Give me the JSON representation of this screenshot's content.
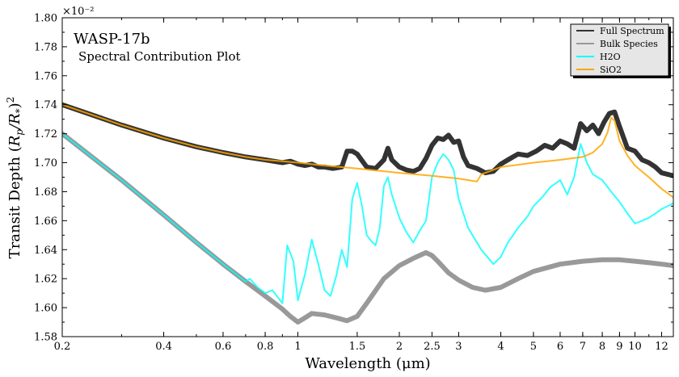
{
  "chart_data": {
    "type": "line",
    "title": "WASP-17b",
    "subtitle": "Spectral Contribution Plot",
    "xlabel": "Wavelength (μm)",
    "ylabel": "Transit Depth (R_p/R_*)^2",
    "y_multiplier": "×10⁻²",
    "x_scale": "log",
    "xlim": [
      0.2,
      13.0
    ],
    "ylim": [
      1.58,
      1.8
    ],
    "x_ticks": [
      "0.2",
      "0.4",
      "0.6",
      "0.8",
      "1",
      "1.5",
      "2",
      "2.5",
      "3",
      "4",
      "5",
      "6",
      "7",
      "8",
      "9",
      "10",
      "12"
    ],
    "y_ticks": [
      "1.58",
      "1.60",
      "1.62",
      "1.64",
      "1.66",
      "1.68",
      "1.70",
      "1.72",
      "1.74",
      "1.76",
      "1.78",
      "1.80"
    ],
    "legend_position": "top-right",
    "series": [
      {
        "name": "Full Spectrum",
        "color": "#333333",
        "x": [
          0.2,
          0.3,
          0.4,
          0.5,
          0.6,
          0.7,
          0.8,
          0.9,
          0.95,
          1.0,
          1.05,
          1.1,
          1.15,
          1.2,
          1.27,
          1.35,
          1.4,
          1.45,
          1.5,
          1.6,
          1.7,
          1.8,
          1.85,
          1.9,
          2.0,
          2.1,
          2.2,
          2.3,
          2.4,
          2.5,
          2.6,
          2.7,
          2.8,
          2.9,
          3.0,
          3.1,
          3.2,
          3.4,
          3.6,
          3.8,
          4.0,
          4.2,
          4.5,
          4.8,
          5.1,
          5.4,
          5.7,
          6.0,
          6.3,
          6.6,
          6.9,
          7.2,
          7.5,
          7.8,
          8.1,
          8.4,
          8.7,
          9.0,
          9.5,
          10.0,
          10.5,
          11.0,
          11.5,
          12.0,
          12.5,
          13.0
        ],
        "y": [
          1.74,
          1.726,
          1.717,
          1.711,
          1.707,
          1.704,
          1.702,
          1.7,
          1.701,
          1.699,
          1.698,
          1.699,
          1.697,
          1.697,
          1.696,
          1.697,
          1.708,
          1.708,
          1.706,
          1.697,
          1.696,
          1.702,
          1.71,
          1.702,
          1.697,
          1.695,
          1.694,
          1.696,
          1.703,
          1.712,
          1.717,
          1.716,
          1.719,
          1.714,
          1.715,
          1.704,
          1.698,
          1.696,
          1.693,
          1.694,
          1.699,
          1.702,
          1.706,
          1.705,
          1.708,
          1.712,
          1.71,
          1.715,
          1.713,
          1.71,
          1.727,
          1.722,
          1.726,
          1.72,
          1.728,
          1.734,
          1.735,
          1.725,
          1.71,
          1.708,
          1.702,
          1.7,
          1.697,
          1.693,
          1.692,
          1.691
        ]
      },
      {
        "name": "Bulk Species",
        "color": "#999999",
        "x": [
          0.2,
          0.3,
          0.4,
          0.5,
          0.6,
          0.7,
          0.8,
          0.9,
          0.95,
          1.0,
          1.05,
          1.1,
          1.2,
          1.3,
          1.4,
          1.5,
          1.6,
          1.8,
          2.0,
          2.2,
          2.4,
          2.5,
          2.6,
          2.8,
          3.0,
          3.3,
          3.6,
          4.0,
          4.5,
          5.0,
          6.0,
          7.0,
          8.0,
          9.0,
          10.0,
          11.0,
          12.0,
          13.0
        ],
        "y": [
          1.72,
          1.688,
          1.664,
          1.645,
          1.63,
          1.618,
          1.608,
          1.599,
          1.594,
          1.59,
          1.593,
          1.596,
          1.595,
          1.593,
          1.591,
          1.594,
          1.603,
          1.62,
          1.629,
          1.634,
          1.638,
          1.636,
          1.632,
          1.624,
          1.619,
          1.614,
          1.612,
          1.614,
          1.62,
          1.625,
          1.63,
          1.632,
          1.633,
          1.633,
          1.632,
          1.631,
          1.63,
          1.629
        ]
      },
      {
        "name": "H2O",
        "color": "#00FFFF",
        "x": [
          0.2,
          0.3,
          0.4,
          0.5,
          0.6,
          0.7,
          0.72,
          0.76,
          0.8,
          0.84,
          0.88,
          0.9,
          0.93,
          0.97,
          1.0,
          1.05,
          1.1,
          1.15,
          1.2,
          1.25,
          1.3,
          1.35,
          1.4,
          1.45,
          1.5,
          1.55,
          1.6,
          1.65,
          1.7,
          1.75,
          1.8,
          1.85,
          1.9,
          2.0,
          2.1,
          2.2,
          2.3,
          2.4,
          2.5,
          2.6,
          2.7,
          2.8,
          2.9,
          3.0,
          3.2,
          3.5,
          3.8,
          4.0,
          4.2,
          4.5,
          4.8,
          5.0,
          5.3,
          5.6,
          6.0,
          6.3,
          6.6,
          6.9,
          7.2,
          7.5,
          8.0,
          8.5,
          9.0,
          9.5,
          10.0,
          10.5,
          11.0,
          11.5,
          12.0,
          12.5,
          13.0
        ],
        "y": [
          1.72,
          1.688,
          1.664,
          1.645,
          1.63,
          1.618,
          1.62,
          1.614,
          1.61,
          1.612,
          1.606,
          1.603,
          1.643,
          1.632,
          1.605,
          1.623,
          1.647,
          1.63,
          1.612,
          1.608,
          1.622,
          1.64,
          1.628,
          1.675,
          1.686,
          1.67,
          1.65,
          1.646,
          1.643,
          1.655,
          1.684,
          1.69,
          1.678,
          1.662,
          1.652,
          1.645,
          1.653,
          1.66,
          1.69,
          1.7,
          1.706,
          1.702,
          1.695,
          1.675,
          1.655,
          1.64,
          1.63,
          1.635,
          1.645,
          1.655,
          1.663,
          1.67,
          1.676,
          1.683,
          1.688,
          1.678,
          1.69,
          1.713,
          1.7,
          1.692,
          1.688,
          1.68,
          1.673,
          1.665,
          1.658,
          1.66,
          1.662,
          1.665,
          1.668,
          1.67,
          1.672
        ]
      },
      {
        "name": "SiO2",
        "color": "#FFA500",
        "x": [
          0.2,
          0.3,
          0.4,
          0.5,
          0.6,
          0.7,
          0.8,
          0.9,
          1.0,
          1.2,
          1.5,
          2.0,
          2.5,
          3.0,
          3.4,
          3.5,
          4.0,
          5.0,
          6.0,
          7.0,
          7.5,
          8.0,
          8.3,
          8.5,
          8.7,
          9.0,
          9.5,
          10.0,
          11.0,
          12.0,
          13.0
        ],
        "y": [
          1.74,
          1.726,
          1.717,
          1.711,
          1.707,
          1.704,
          1.702,
          1.701,
          1.7,
          1.698,
          1.696,
          1.693,
          1.691,
          1.689,
          1.687,
          1.692,
          1.697,
          1.7,
          1.702,
          1.704,
          1.707,
          1.713,
          1.721,
          1.731,
          1.729,
          1.715,
          1.705,
          1.698,
          1.69,
          1.682,
          1.676
        ]
      }
    ]
  }
}
